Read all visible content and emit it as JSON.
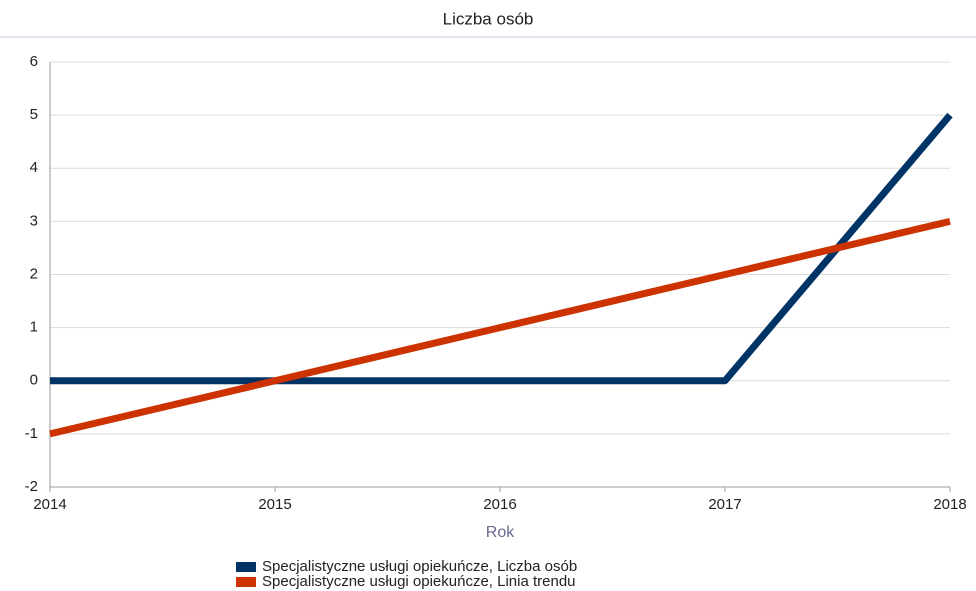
{
  "chart_data": {
    "type": "line",
    "title": "Liczba osób",
    "xlabel": "Rok",
    "x": [
      2014,
      2015,
      2016,
      2017,
      2018
    ],
    "series": [
      {
        "name": "Specjalistyczne usługi opiekuńcze, Liczba osób",
        "color": "#003366",
        "values": [
          0,
          0,
          0,
          0,
          5
        ]
      },
      {
        "name": "Specjalistyczne usługi opiekuńcze, Linia trendu",
        "color": "#cc3300",
        "values": [
          -1,
          0,
          1,
          2,
          3
        ]
      }
    ],
    "xlim": [
      2014,
      2018
    ],
    "xticks": [
      2014,
      2015,
      2016,
      2017,
      2018
    ],
    "ylim": [
      -2,
      6
    ],
    "yticks": [
      -2,
      -1,
      0,
      1,
      2,
      3,
      4,
      5,
      6
    ],
    "grid": true
  }
}
